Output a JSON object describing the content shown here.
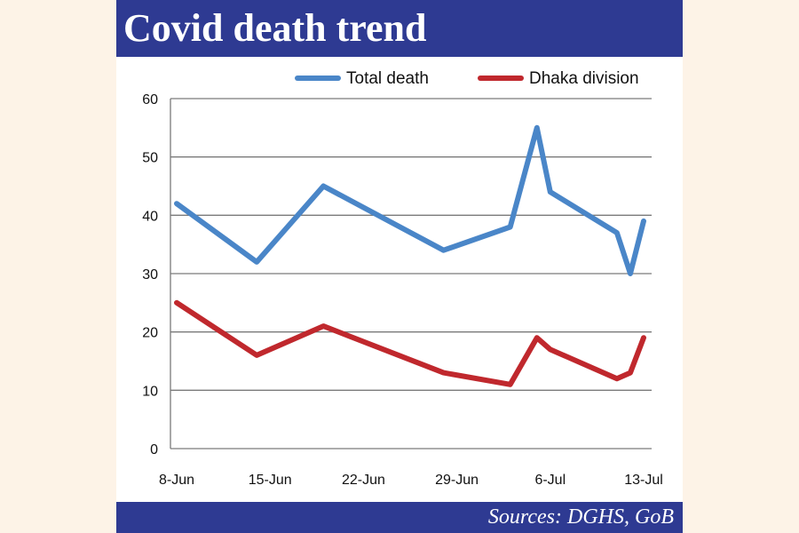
{
  "header": {
    "title": "Covid death trend"
  },
  "footer": {
    "source": "Sources: DGHS, GoB"
  },
  "colors": {
    "bar": "#2e3a92",
    "total": "#4a86c8",
    "dhaka": "#c0282d",
    "grid": "#7a7a7a"
  },
  "chart_data": {
    "type": "line",
    "title": "Covid death trend",
    "xlabel": "",
    "ylabel": "",
    "ylim": [
      0,
      60
    ],
    "yticks": [
      0,
      10,
      20,
      30,
      40,
      50,
      60
    ],
    "xlim": [
      "2021-06-08",
      "2021-07-13"
    ],
    "xtick_labels": [
      "8-Jun",
      "15-Jun",
      "22-Jun",
      "29-Jun",
      "6-Jul",
      "13-Jul"
    ],
    "xtick_dates": [
      "2021-06-08",
      "2021-06-15",
      "2021-06-22",
      "2021-06-29",
      "2021-07-06",
      "2021-07-13"
    ],
    "grid": "horizontal",
    "legend_position": "top-right",
    "series": [
      {
        "name": "Total death",
        "points": [
          {
            "x": "2021-06-08",
            "y": 42
          },
          {
            "x": "2021-06-14",
            "y": 32
          },
          {
            "x": "2021-06-19",
            "y": 45
          },
          {
            "x": "2021-06-28",
            "y": 34
          },
          {
            "x": "2021-07-03",
            "y": 38
          },
          {
            "x": "2021-07-05",
            "y": 55
          },
          {
            "x": "2021-07-06",
            "y": 44
          },
          {
            "x": "2021-07-11",
            "y": 37
          },
          {
            "x": "2021-07-12",
            "y": 30
          },
          {
            "x": "2021-07-13",
            "y": 39
          }
        ]
      },
      {
        "name": "Dhaka division",
        "points": [
          {
            "x": "2021-06-08",
            "y": 25
          },
          {
            "x": "2021-06-14",
            "y": 16
          },
          {
            "x": "2021-06-19",
            "y": 21
          },
          {
            "x": "2021-06-28",
            "y": 13
          },
          {
            "x": "2021-07-03",
            "y": 11
          },
          {
            "x": "2021-07-05",
            "y": 19
          },
          {
            "x": "2021-07-06",
            "y": 17
          },
          {
            "x": "2021-07-11",
            "y": 12
          },
          {
            "x": "2021-07-12",
            "y": 13
          },
          {
            "x": "2021-07-13",
            "y": 19
          }
        ]
      }
    ]
  }
}
